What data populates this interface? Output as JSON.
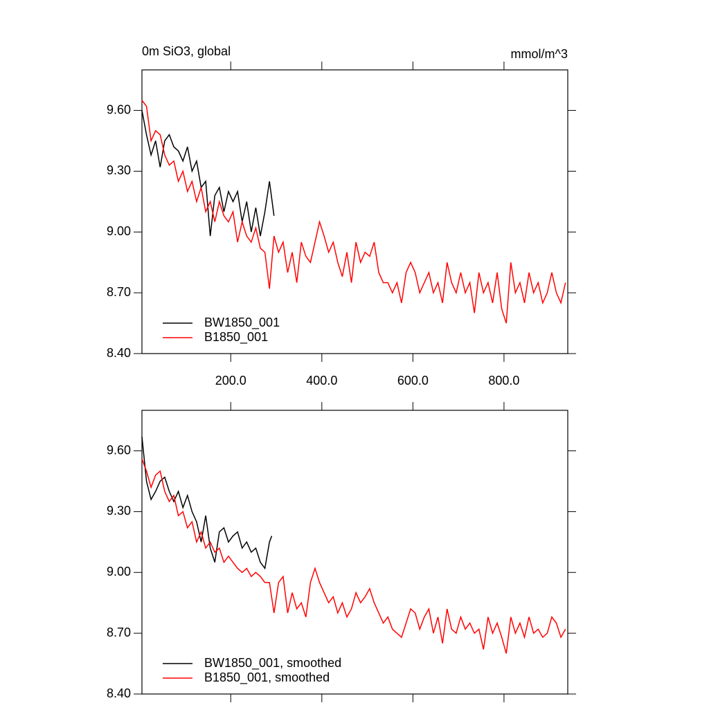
{
  "chart_data": [
    {
      "type": "line",
      "title": "0m SiO3, global",
      "units": "mmol/m^3",
      "xlim": [
        5,
        940
      ],
      "ylim": [
        8.4,
        9.8
      ],
      "xticks": [
        {
          "value": 200,
          "label": "200.0"
        },
        {
          "value": 400,
          "label": "400.0"
        },
        {
          "value": 600,
          "label": "600.0"
        },
        {
          "value": 800,
          "label": "800.0"
        }
      ],
      "yticks": [
        {
          "value": 8.4,
          "label": "8.40"
        },
        {
          "value": 8.7,
          "label": "8.70"
        },
        {
          "value": 9.0,
          "label": "9.00"
        },
        {
          "value": 9.3,
          "label": "9.30"
        },
        {
          "value": 9.6,
          "label": "9.60"
        }
      ],
      "xtick_labels": true,
      "legend": "lower left",
      "series": [
        {
          "name": "BW1850_001",
          "color": "#000000",
          "x": [
            5,
            15,
            25,
            35,
            45,
            55,
            65,
            75,
            85,
            95,
            105,
            115,
            125,
            135,
            145,
            155,
            165,
            175,
            185,
            195,
            205,
            215,
            225,
            235,
            245,
            255,
            265,
            275,
            285,
            295
          ],
          "values": [
            9.6,
            9.48,
            9.38,
            9.45,
            9.32,
            9.45,
            9.48,
            9.42,
            9.4,
            9.35,
            9.42,
            9.3,
            9.35,
            9.22,
            9.25,
            8.98,
            9.18,
            9.22,
            9.1,
            9.2,
            9.15,
            9.2,
            9.05,
            9.15,
            9.0,
            9.12,
            8.98,
            9.1,
            9.25,
            9.08
          ]
        },
        {
          "name": "B1850_001",
          "color": "#ff0000",
          "x": [
            5,
            15,
            25,
            35,
            45,
            55,
            65,
            75,
            85,
            95,
            105,
            115,
            125,
            135,
            145,
            155,
            165,
            175,
            185,
            195,
            205,
            215,
            225,
            235,
            245,
            255,
            265,
            275,
            285,
            295,
            305,
            315,
            325,
            335,
            345,
            355,
            365,
            375,
            385,
            395,
            405,
            415,
            425,
            435,
            445,
            455,
            465,
            475,
            485,
            495,
            505,
            515,
            525,
            535,
            545,
            555,
            565,
            575,
            585,
            595,
            605,
            615,
            625,
            635,
            645,
            655,
            665,
            675,
            685,
            695,
            705,
            715,
            725,
            735,
            745,
            755,
            765,
            775,
            785,
            795,
            805,
            815,
            825,
            835,
            845,
            855,
            865,
            875,
            885,
            895,
            905,
            915,
            925,
            935
          ],
          "values": [
            9.65,
            9.62,
            9.45,
            9.5,
            9.48,
            9.38,
            9.33,
            9.35,
            9.25,
            9.3,
            9.2,
            9.25,
            9.15,
            9.22,
            9.1,
            9.15,
            9.05,
            9.15,
            9.08,
            9.05,
            9.1,
            8.95,
            9.05,
            8.98,
            8.95,
            9.02,
            8.92,
            8.9,
            8.72,
            8.98,
            8.9,
            8.95,
            8.8,
            8.9,
            8.75,
            8.95,
            8.88,
            8.85,
            8.95,
            9.05,
            8.98,
            8.9,
            8.95,
            8.85,
            8.78,
            8.9,
            8.75,
            8.95,
            8.85,
            8.9,
            8.88,
            8.95,
            8.8,
            8.75,
            8.75,
            8.7,
            8.75,
            8.65,
            8.8,
            8.85,
            8.8,
            8.7,
            8.75,
            8.8,
            8.7,
            8.75,
            8.65,
            8.85,
            8.75,
            8.7,
            8.8,
            8.7,
            8.75,
            8.6,
            8.8,
            8.7,
            8.75,
            8.65,
            8.8,
            8.62,
            8.55,
            8.85,
            8.7,
            8.75,
            8.65,
            8.8,
            8.7,
            8.75,
            8.65,
            8.7,
            8.8,
            8.7,
            8.65,
            8.75
          ]
        }
      ]
    },
    {
      "type": "line",
      "xlim": [
        5,
        940
      ],
      "ylim": [
        8.4,
        9.8
      ],
      "xticks": [
        200,
        400,
        600,
        800
      ],
      "yticks": [
        {
          "value": 8.4,
          "label": "8.40"
        },
        {
          "value": 8.7,
          "label": "8.70"
        },
        {
          "value": 9.0,
          "label": "9.00"
        },
        {
          "value": 9.3,
          "label": "9.30"
        },
        {
          "value": 9.6,
          "label": "9.60"
        }
      ],
      "xtick_labels": false,
      "legend": "lower left",
      "series": [
        {
          "name": "BW1850_001, smoothed",
          "color": "#000000",
          "x": [
            5,
            15,
            25,
            35,
            45,
            55,
            65,
            75,
            85,
            95,
            105,
            115,
            125,
            135,
            145,
            155,
            165,
            175,
            185,
            195,
            205,
            215,
            225,
            235,
            245,
            255,
            265,
            275,
            285,
            290
          ],
          "values": [
            9.67,
            9.45,
            9.36,
            9.4,
            9.45,
            9.47,
            9.4,
            9.35,
            9.4,
            9.32,
            9.38,
            9.3,
            9.25,
            9.15,
            9.28,
            9.12,
            9.05,
            9.2,
            9.22,
            9.15,
            9.18,
            9.2,
            9.12,
            9.15,
            9.1,
            9.12,
            9.05,
            9.02,
            9.15,
            9.18
          ]
        },
        {
          "name": "B1850_001, smoothed",
          "color": "#ff0000",
          "x": [
            5,
            15,
            25,
            35,
            45,
            55,
            65,
            75,
            85,
            95,
            105,
            115,
            125,
            135,
            145,
            155,
            165,
            175,
            185,
            195,
            205,
            215,
            225,
            235,
            245,
            255,
            265,
            275,
            285,
            295,
            305,
            315,
            325,
            335,
            345,
            355,
            365,
            375,
            385,
            395,
            405,
            415,
            425,
            435,
            445,
            455,
            465,
            475,
            485,
            495,
            505,
            515,
            525,
            535,
            545,
            555,
            565,
            575,
            585,
            595,
            605,
            615,
            625,
            635,
            645,
            655,
            665,
            675,
            685,
            695,
            705,
            715,
            725,
            735,
            745,
            755,
            765,
            775,
            785,
            795,
            805,
            815,
            825,
            835,
            845,
            855,
            865,
            875,
            885,
            895,
            905,
            915,
            925,
            935
          ],
          "values": [
            9.56,
            9.5,
            9.42,
            9.48,
            9.5,
            9.4,
            9.35,
            9.38,
            9.28,
            9.3,
            9.22,
            9.25,
            9.15,
            9.2,
            9.12,
            9.15,
            9.1,
            9.12,
            9.05,
            9.08,
            9.05,
            9.02,
            9.0,
            9.02,
            8.98,
            9.0,
            8.98,
            8.95,
            8.95,
            8.8,
            8.95,
            8.98,
            8.8,
            8.9,
            8.82,
            8.85,
            8.78,
            8.95,
            9.02,
            8.95,
            8.9,
            8.85,
            8.88,
            8.8,
            8.85,
            8.78,
            8.82,
            8.9,
            8.85,
            8.88,
            8.92,
            8.85,
            8.8,
            8.75,
            8.78,
            8.72,
            8.7,
            8.68,
            8.75,
            8.82,
            8.8,
            8.72,
            8.78,
            8.82,
            8.7,
            8.78,
            8.65,
            8.82,
            8.72,
            8.7,
            8.78,
            8.72,
            8.75,
            8.7,
            8.72,
            8.62,
            8.78,
            8.7,
            8.75,
            8.68,
            8.6,
            8.78,
            8.7,
            8.75,
            8.68,
            8.78,
            8.7,
            8.72,
            8.68,
            8.7,
            8.78,
            8.75,
            8.68,
            8.72
          ]
        }
      ]
    }
  ]
}
